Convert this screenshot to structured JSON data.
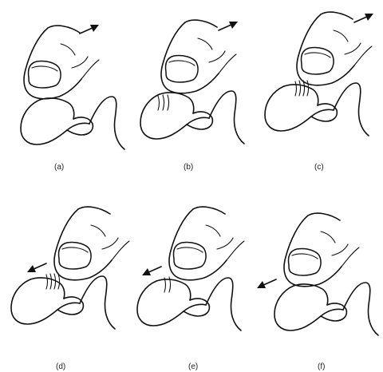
{
  "figure": {
    "panels": [
      {
        "id": "a",
        "label": "(a)",
        "arrow_direction": "up-right",
        "thumb_position": "tip",
        "skin_folds": 0
      },
      {
        "id": "b",
        "label": "(b)",
        "arrow_direction": "up-right",
        "thumb_position": "middle",
        "skin_folds": 3
      },
      {
        "id": "c",
        "label": "(c)",
        "arrow_direction": "up-right",
        "thumb_position": "base",
        "skin_folds": 4
      },
      {
        "id": "d",
        "label": "(d)",
        "arrow_direction": "down-left",
        "thumb_position": "base",
        "skin_folds": 4
      },
      {
        "id": "e",
        "label": "(e)",
        "arrow_direction": "down-left",
        "thumb_position": "middle",
        "skin_folds": 2
      },
      {
        "id": "f",
        "label": "(f)",
        "arrow_direction": "down-left",
        "thumb_position": "tip",
        "skin_folds": 0
      }
    ],
    "colors": {
      "ink": "#111111",
      "background": "#ffffff"
    }
  }
}
